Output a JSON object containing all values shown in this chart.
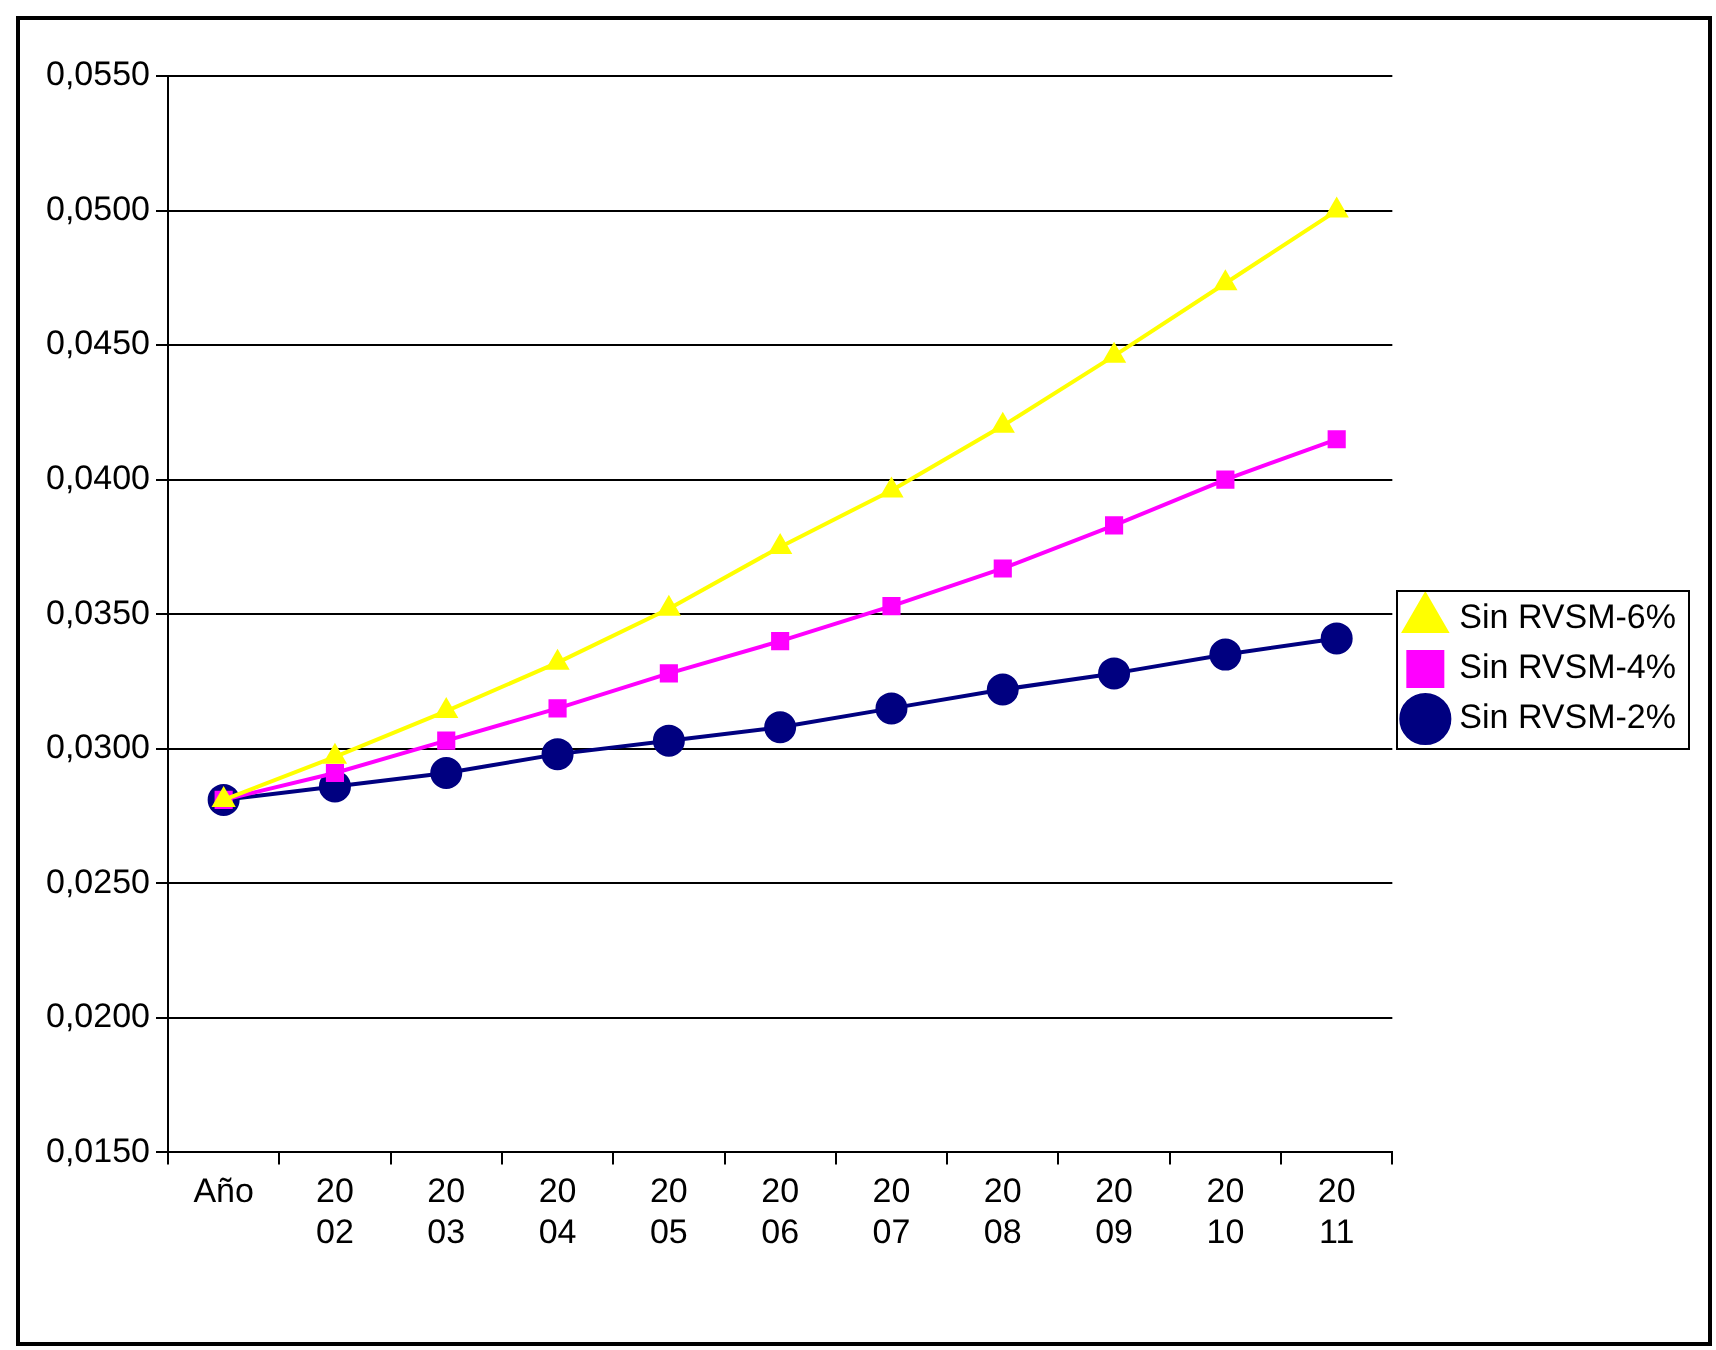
{
  "chart_data": {
    "type": "line",
    "categories": [
      "Año",
      "2002",
      "2003",
      "2004",
      "2005",
      "2006",
      "2007",
      "2008",
      "2009",
      "2010",
      "2011"
    ],
    "series": [
      {
        "name": "Sin RVSM-2%",
        "color": "#000080",
        "marker": "circle",
        "values": [
          0.0281,
          0.0286,
          0.0291,
          0.0298,
          0.0303,
          0.0308,
          0.0315,
          0.0322,
          0.0328,
          0.0335,
          0.0341
        ]
      },
      {
        "name": "Sin RVSM-4%",
        "color": "#ff00ff",
        "marker": "square",
        "values": [
          0.0281,
          0.0291,
          0.0303,
          0.0315,
          0.0328,
          0.034,
          0.0353,
          0.0367,
          0.0383,
          0.04,
          0.0415
        ]
      },
      {
        "name": "Sin RVSM-6%",
        "color": "#ffff00",
        "marker": "triangle",
        "values": [
          0.0281,
          0.0297,
          0.0314,
          0.0332,
          0.0352,
          0.0375,
          0.0396,
          0.042,
          0.0446,
          0.0473,
          0.05
        ]
      }
    ],
    "ylim": [
      0.015,
      0.055
    ],
    "yticks": [
      {
        "value": 0.015,
        "label": "0,0150"
      },
      {
        "value": 0.02,
        "label": "0,0200"
      },
      {
        "value": 0.025,
        "label": "0,0250"
      },
      {
        "value": 0.03,
        "label": "0,0300"
      },
      {
        "value": 0.035,
        "label": "0,0350"
      },
      {
        "value": 0.04,
        "label": "0,0400"
      },
      {
        "value": 0.045,
        "label": "0,0450"
      },
      {
        "value": 0.05,
        "label": "0,0500"
      },
      {
        "value": 0.055,
        "label": "0,0550"
      }
    ],
    "grid": "y",
    "legend": "right",
    "line_style": "solid"
  }
}
